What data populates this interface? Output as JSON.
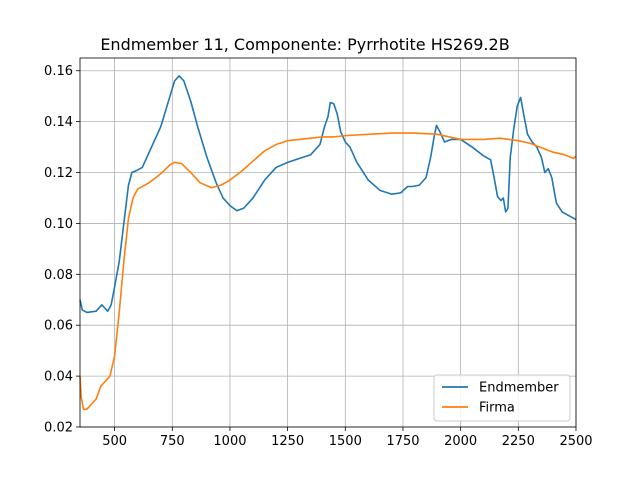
{
  "chart_data": {
    "type": "line",
    "title": "Endmember 11, Componente: Pyrrhotite HS269.2B",
    "xlabel": "",
    "ylabel": "",
    "xlim": [
      350,
      2500
    ],
    "ylim": [
      0.02,
      0.165
    ],
    "x_ticks": [
      500,
      750,
      1000,
      1250,
      1500,
      1750,
      2000,
      2250,
      2500
    ],
    "y_ticks": [
      0.02,
      0.04,
      0.06,
      0.08,
      0.1,
      0.12,
      0.14,
      0.16
    ],
    "x_tick_labels": [
      "500",
      "750",
      "1000",
      "1250",
      "1500",
      "1750",
      "2000",
      "2250",
      "2500"
    ],
    "y_tick_labels": [
      "0.02",
      "0.04",
      "0.06",
      "0.08",
      "0.10",
      "0.12",
      "0.14",
      "0.16"
    ],
    "grid": true,
    "legend_position": "lower-right",
    "series": [
      {
        "name": "Endmember",
        "color": "#1f77b4",
        "points": [
          [
            350,
            0.07
          ],
          [
            360,
            0.066
          ],
          [
            380,
            0.065
          ],
          [
            420,
            0.0655
          ],
          [
            445,
            0.068
          ],
          [
            470,
            0.0655
          ],
          [
            485,
            0.068
          ],
          [
            500,
            0.075
          ],
          [
            520,
            0.085
          ],
          [
            540,
            0.1
          ],
          [
            560,
            0.115
          ],
          [
            575,
            0.12
          ],
          [
            600,
            0.121
          ],
          [
            620,
            0.122
          ],
          [
            650,
            0.128
          ],
          [
            700,
            0.138
          ],
          [
            740,
            0.15
          ],
          [
            760,
            0.156
          ],
          [
            780,
            0.158
          ],
          [
            800,
            0.156
          ],
          [
            830,
            0.148
          ],
          [
            860,
            0.138
          ],
          [
            900,
            0.126
          ],
          [
            940,
            0.116
          ],
          [
            970,
            0.11
          ],
          [
            1000,
            0.107
          ],
          [
            1030,
            0.105
          ],
          [
            1060,
            0.106
          ],
          [
            1100,
            0.11
          ],
          [
            1150,
            0.117
          ],
          [
            1200,
            0.122
          ],
          [
            1250,
            0.124
          ],
          [
            1300,
            0.1255
          ],
          [
            1350,
            0.127
          ],
          [
            1390,
            0.131
          ],
          [
            1410,
            0.138
          ],
          [
            1425,
            0.142
          ],
          [
            1435,
            0.1475
          ],
          [
            1450,
            0.147
          ],
          [
            1465,
            0.143
          ],
          [
            1480,
            0.136
          ],
          [
            1500,
            0.132
          ],
          [
            1520,
            0.13
          ],
          [
            1550,
            0.124
          ],
          [
            1600,
            0.117
          ],
          [
            1650,
            0.113
          ],
          [
            1700,
            0.1115
          ],
          [
            1740,
            0.112
          ],
          [
            1770,
            0.1145
          ],
          [
            1790,
            0.1145
          ],
          [
            1820,
            0.115
          ],
          [
            1850,
            0.118
          ],
          [
            1870,
            0.126
          ],
          [
            1885,
            0.134
          ],
          [
            1895,
            0.1385
          ],
          [
            1910,
            0.136
          ],
          [
            1930,
            0.132
          ],
          [
            1960,
            0.133
          ],
          [
            2000,
            0.133
          ],
          [
            2050,
            0.13
          ],
          [
            2100,
            0.1265
          ],
          [
            2130,
            0.125
          ],
          [
            2145,
            0.118
          ],
          [
            2160,
            0.1105
          ],
          [
            2175,
            0.109
          ],
          [
            2185,
            0.11
          ],
          [
            2195,
            0.1045
          ],
          [
            2205,
            0.106
          ],
          [
            2215,
            0.126
          ],
          [
            2230,
            0.137
          ],
          [
            2245,
            0.146
          ],
          [
            2260,
            0.1495
          ],
          [
            2275,
            0.142
          ],
          [
            2290,
            0.135
          ],
          [
            2310,
            0.132
          ],
          [
            2330,
            0.13
          ],
          [
            2350,
            0.126
          ],
          [
            2365,
            0.12
          ],
          [
            2380,
            0.1215
          ],
          [
            2395,
            0.118
          ],
          [
            2415,
            0.108
          ],
          [
            2440,
            0.1045
          ],
          [
            2470,
            0.103
          ],
          [
            2500,
            0.1015
          ]
        ]
      },
      {
        "name": "Firma",
        "color": "#ff7f0e",
        "points": [
          [
            350,
            0.04
          ],
          [
            355,
            0.032
          ],
          [
            365,
            0.027
          ],
          [
            380,
            0.027
          ],
          [
            400,
            0.029
          ],
          [
            420,
            0.031
          ],
          [
            440,
            0.036
          ],
          [
            460,
            0.038
          ],
          [
            480,
            0.04
          ],
          [
            500,
            0.048
          ],
          [
            520,
            0.065
          ],
          [
            540,
            0.085
          ],
          [
            560,
            0.102
          ],
          [
            580,
            0.11
          ],
          [
            600,
            0.1135
          ],
          [
            650,
            0.116
          ],
          [
            700,
            0.1195
          ],
          [
            740,
            0.123
          ],
          [
            760,
            0.124
          ],
          [
            790,
            0.1235
          ],
          [
            830,
            0.12
          ],
          [
            870,
            0.116
          ],
          [
            920,
            0.114
          ],
          [
            960,
            0.115
          ],
          [
            1000,
            0.117
          ],
          [
            1050,
            0.1205
          ],
          [
            1100,
            0.1245
          ],
          [
            1150,
            0.1285
          ],
          [
            1200,
            0.131
          ],
          [
            1250,
            0.1325
          ],
          [
            1300,
            0.133
          ],
          [
            1350,
            0.1335
          ],
          [
            1400,
            0.134
          ],
          [
            1450,
            0.134
          ],
          [
            1500,
            0.1345
          ],
          [
            1600,
            0.135
          ],
          [
            1700,
            0.1355
          ],
          [
            1800,
            0.1355
          ],
          [
            1900,
            0.135
          ],
          [
            2000,
            0.133
          ],
          [
            2100,
            0.133
          ],
          [
            2170,
            0.1335
          ],
          [
            2250,
            0.1325
          ],
          [
            2300,
            0.1315
          ],
          [
            2400,
            0.128
          ],
          [
            2450,
            0.127
          ],
          [
            2490,
            0.1255
          ],
          [
            2500,
            0.1265
          ]
        ]
      }
    ]
  }
}
